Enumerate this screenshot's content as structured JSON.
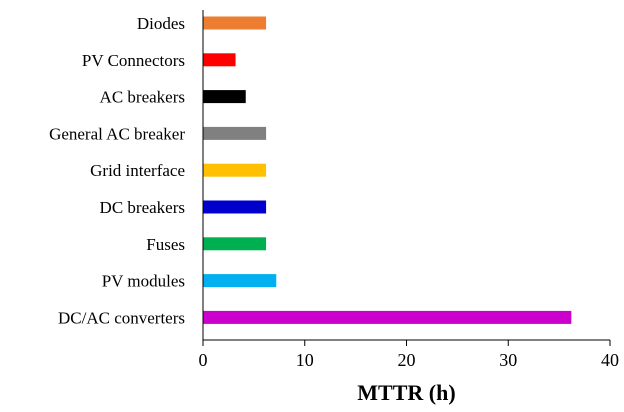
{
  "chart_data": {
    "type": "bar",
    "orientation": "horizontal",
    "categories": [
      "Diodes",
      "PV Connectors",
      "AC breakers",
      "General AC breaker",
      "Grid interface",
      "DC breakers",
      "Fuses",
      "PV modules",
      "DC/AC converters"
    ],
    "values": [
      6.2,
      3.2,
      4.2,
      6.2,
      6.2,
      6.2,
      6.2,
      7.2,
      36.2
    ],
    "colors": [
      "#ED7D31",
      "#FF0000",
      "#000000",
      "#808080",
      "#FFC000",
      "#0000CC",
      "#00B050",
      "#00B0F0",
      "#CC00CC"
    ],
    "xlabel": "MTTR (h)",
    "xlim": [
      0,
      40
    ],
    "xticks": [
      0,
      10,
      20,
      30,
      40
    ],
    "grid": false,
    "legend": "none"
  }
}
